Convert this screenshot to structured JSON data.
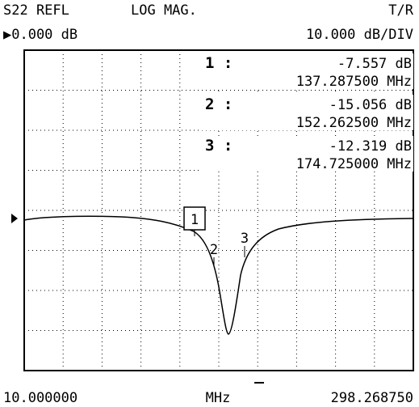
{
  "header": {
    "parameter": "S22 REFL",
    "format": "LOG MAG.",
    "mode": "T/R",
    "reference": "▶0.000 dB",
    "scale": "10.000 dB/DIV"
  },
  "markers": [
    {
      "label": "1 :",
      "value": "-7.557 dB",
      "frequency": "137.287500 MHz",
      "tag": "1"
    },
    {
      "label": "2 :",
      "value": "-15.056 dB",
      "frequency": "152.262500 MHz",
      "tag": "2"
    },
    {
      "label": "3 :",
      "value": "-12.319 dB",
      "frequency": "174.725000 MHz",
      "tag": "3"
    }
  ],
  "footer": {
    "start": "10.000000",
    "unit": "MHz",
    "stop": "298.268750"
  }
}
